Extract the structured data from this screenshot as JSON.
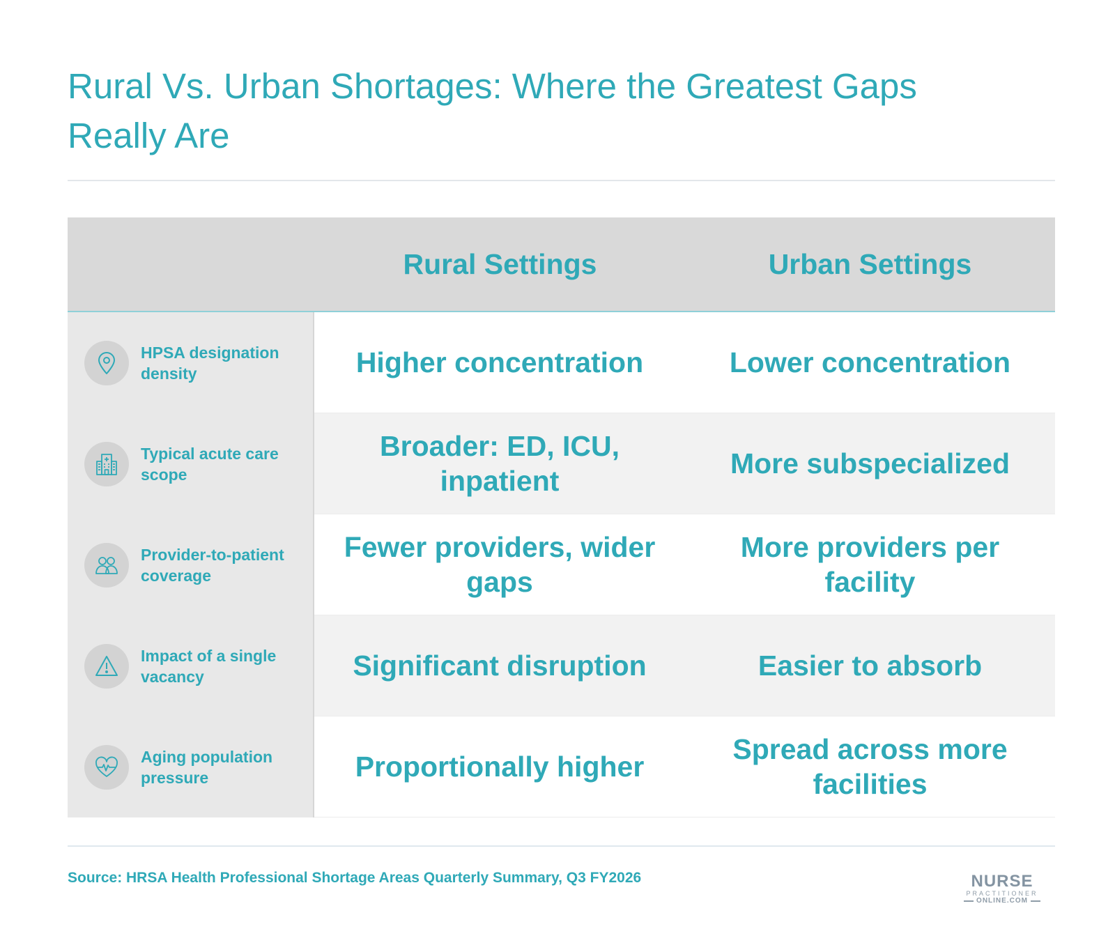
{
  "title": "Rural Vs. Urban Shortages: Where the Greatest Gaps Really Are",
  "columns": {
    "rural": "Rural Settings",
    "urban": "Urban Settings"
  },
  "rows": [
    {
      "label": "HPSA designation density",
      "icon": "map-pin-icon",
      "rural": "Higher concentration",
      "urban": "Lower concentration"
    },
    {
      "label": "Typical acute care scope",
      "icon": "hospital-icon",
      "rural": "Broader: ED, ICU, inpatient",
      "urban": "More subspecialized"
    },
    {
      "label": "Provider-to-patient coverage",
      "icon": "people-icon",
      "rural": "Fewer providers, wider gaps",
      "urban": "More providers per facility"
    },
    {
      "label": "Impact of a single vacancy",
      "icon": "warning-icon",
      "rural": "Significant disruption",
      "urban": "Easier to absorb"
    },
    {
      "label": "Aging population pressure",
      "icon": "heart-pulse-icon",
      "rural": "Proportionally higher",
      "urban": "Spread across more facilities"
    }
  ],
  "source": "Source: HRSA Health Professional Shortage Areas Quarterly Summary, Q3 FY2026",
  "logo": {
    "line1": "NURSE",
    "line2": "PRACTITIONER",
    "line3": "ONLINE.COM"
  },
  "colors": {
    "accent": "#2fa9b7",
    "header_bg": "#d9d9d9",
    "rowhead_bg": "#e8e8e8",
    "alt_row_bg": "#f2f2f2"
  }
}
